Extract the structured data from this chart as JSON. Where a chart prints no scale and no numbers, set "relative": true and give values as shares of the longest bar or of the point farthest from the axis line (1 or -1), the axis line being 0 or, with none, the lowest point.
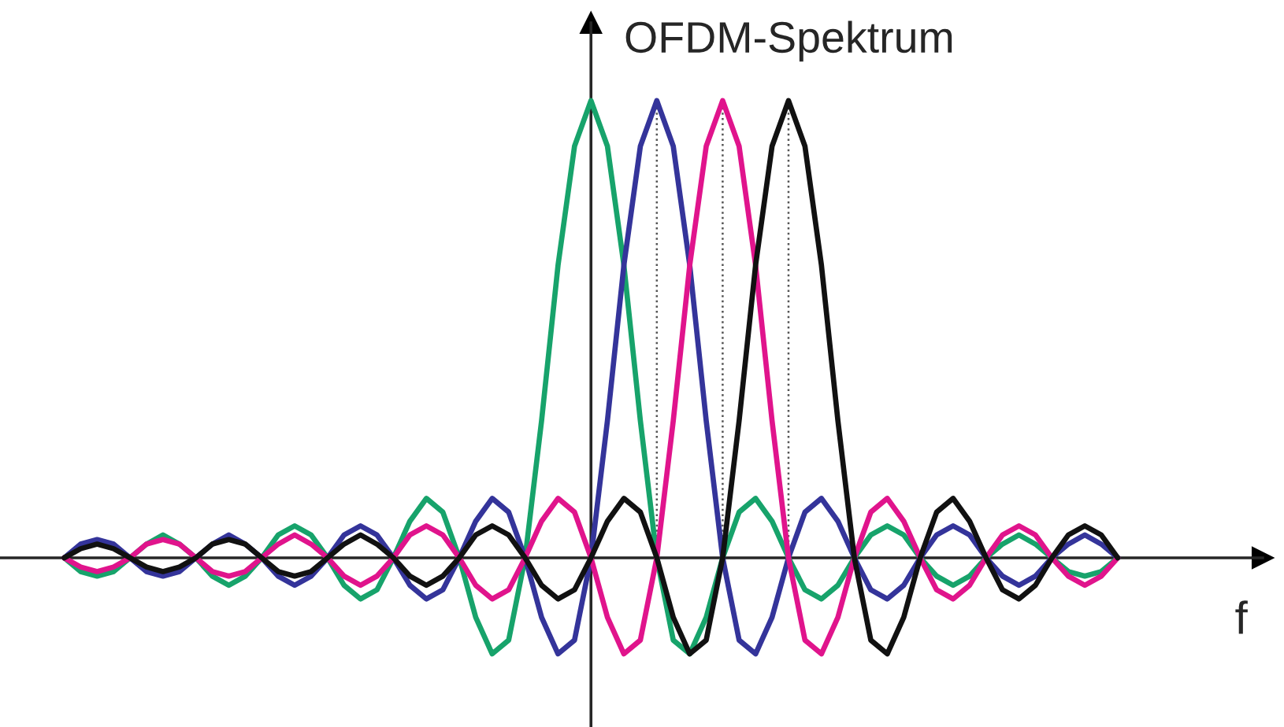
{
  "chart_data": {
    "type": "line",
    "relative": true,
    "ylabel": "OFDM-Spektrum",
    "xlabel": "f",
    "legend": false,
    "grid": "x",
    "marker": "none",
    "line_style": "solid",
    "categories": [
      null,
      null,
      null,
      null,
      null,
      null,
      null,
      null,
      null,
      null,
      null,
      null,
      null,
      null,
      null,
      null,
      null,
      null,
      null,
      null,
      null,
      null,
      null,
      null,
      null,
      null,
      null,
      null,
      null,
      null,
      null,
      null,
      null,
      null,
      null,
      null,
      null,
      null,
      null,
      null,
      null,
      null,
      null,
      null,
      null,
      null,
      null,
      null,
      null,
      null,
      null,
      null,
      null,
      null,
      null,
      null,
      null,
      null,
      null,
      null,
      null,
      null,
      null,
      null,
      null
    ],
    "series": [
      {
        "color": "#17a36b",
        "values": [
          0,
          -0.03,
          -0.04,
          -0.03,
          0,
          0.03,
          0.05,
          0.03,
          0,
          -0.04,
          -0.06,
          -0.04,
          0,
          0.05,
          0.07,
          0.05,
          0,
          -0.06,
          -0.09,
          -0.07,
          0,
          0.08,
          0.13,
          0.1,
          0,
          -0.13,
          -0.21,
          -0.18,
          0,
          0.3,
          0.64,
          0.9,
          1,
          0.9,
          0.64,
          0.3,
          0,
          -0.18,
          -0.21,
          -0.13,
          0,
          0.1,
          0.13,
          0.08,
          0,
          -0.07,
          -0.09,
          -0.06,
          0,
          0.05,
          0.07,
          0.05,
          0,
          -0.04,
          -0.06,
          -0.04,
          0,
          0.03,
          0.05,
          0.03,
          0,
          -0.03,
          -0.04,
          -0.03,
          0
        ]
      },
      {
        "color": "#34349a",
        "values": [
          0,
          0.03,
          0.04,
          0.03,
          0,
          -0.03,
          -0.04,
          -0.03,
          0,
          0.03,
          0.05,
          0.03,
          0,
          -0.04,
          -0.06,
          -0.04,
          0,
          0.05,
          0.07,
          0.05,
          0,
          -0.06,
          -0.09,
          -0.07,
          0,
          0.08,
          0.13,
          0.1,
          0,
          -0.13,
          -0.21,
          -0.18,
          0,
          0.3,
          0.64,
          0.9,
          1,
          0.9,
          0.64,
          0.3,
          0,
          -0.18,
          -0.21,
          -0.13,
          0,
          0.1,
          0.13,
          0.08,
          0,
          -0.07,
          -0.09,
          -0.06,
          0,
          0.05,
          0.07,
          0.05,
          0,
          -0.04,
          -0.06,
          -0.04,
          0,
          0.03,
          0.05,
          0.03,
          0
        ]
      },
      {
        "color": "#e0148c",
        "values": [
          0,
          -0.02,
          -0.03,
          -0.02,
          0,
          0.03,
          0.04,
          0.03,
          0,
          -0.03,
          -0.04,
          -0.03,
          0,
          0.03,
          0.05,
          0.03,
          0,
          -0.04,
          -0.06,
          -0.04,
          0,
          0.05,
          0.07,
          0.05,
          0,
          -0.06,
          -0.09,
          -0.07,
          0,
          0.08,
          0.13,
          0.1,
          0,
          -0.13,
          -0.21,
          -0.18,
          0,
          0.3,
          0.64,
          0.9,
          1,
          0.9,
          0.64,
          0.3,
          0,
          -0.18,
          -0.21,
          -0.13,
          0,
          0.1,
          0.13,
          0.08,
          0,
          -0.07,
          -0.09,
          -0.06,
          0,
          0.05,
          0.07,
          0.05,
          0,
          -0.04,
          -0.06,
          -0.04,
          0
        ]
      },
      {
        "color": "#111111",
        "values": [
          0,
          0.02,
          0.03,
          0.02,
          0,
          -0.02,
          -0.03,
          -0.02,
          0,
          0.03,
          0.04,
          0.03,
          0,
          -0.03,
          -0.04,
          -0.03,
          0,
          0.03,
          0.05,
          0.03,
          0,
          -0.04,
          -0.06,
          -0.04,
          0,
          0.05,
          0.07,
          0.05,
          0,
          -0.06,
          -0.09,
          -0.07,
          0,
          0.08,
          0.13,
          0.1,
          0,
          -0.13,
          -0.21,
          -0.18,
          0,
          0.3,
          0.64,
          0.9,
          1,
          0.9,
          0.64,
          0.3,
          0,
          -0.18,
          -0.21,
          -0.13,
          0,
          0.1,
          0.13,
          0.08,
          0,
          -0.07,
          -0.09,
          -0.06,
          0,
          0.05,
          0.07,
          0.05,
          0
        ]
      }
    ]
  }
}
